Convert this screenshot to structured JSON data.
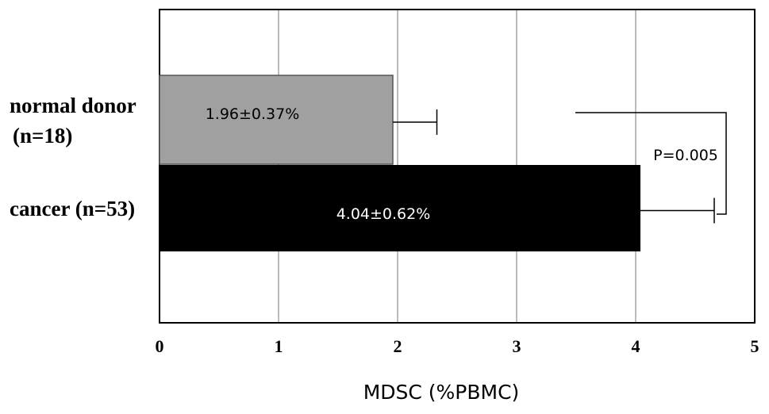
{
  "chart_data": {
    "type": "bar",
    "orientation": "horizontal",
    "categories": [
      "normal donor\n(n=18)",
      "cancer (n=53)"
    ],
    "values": [
      1.96,
      4.04
    ],
    "errors": [
      0.37,
      0.62
    ],
    "colors": [
      "#a0a0a0",
      "#000000"
    ],
    "data_labels": [
      "1.96±0.37%",
      "4.04±0.62%"
    ],
    "data_label_colors": [
      "#000000",
      "#ffffff"
    ],
    "title": "",
    "xlabel": "MDSC (%PBMC)",
    "ylabel": "",
    "xlim": [
      0,
      5
    ],
    "xticks": [
      "0",
      "1",
      "2",
      "3",
      "4",
      "5"
    ],
    "grid": "vertical",
    "annotation": "P=0.005"
  }
}
